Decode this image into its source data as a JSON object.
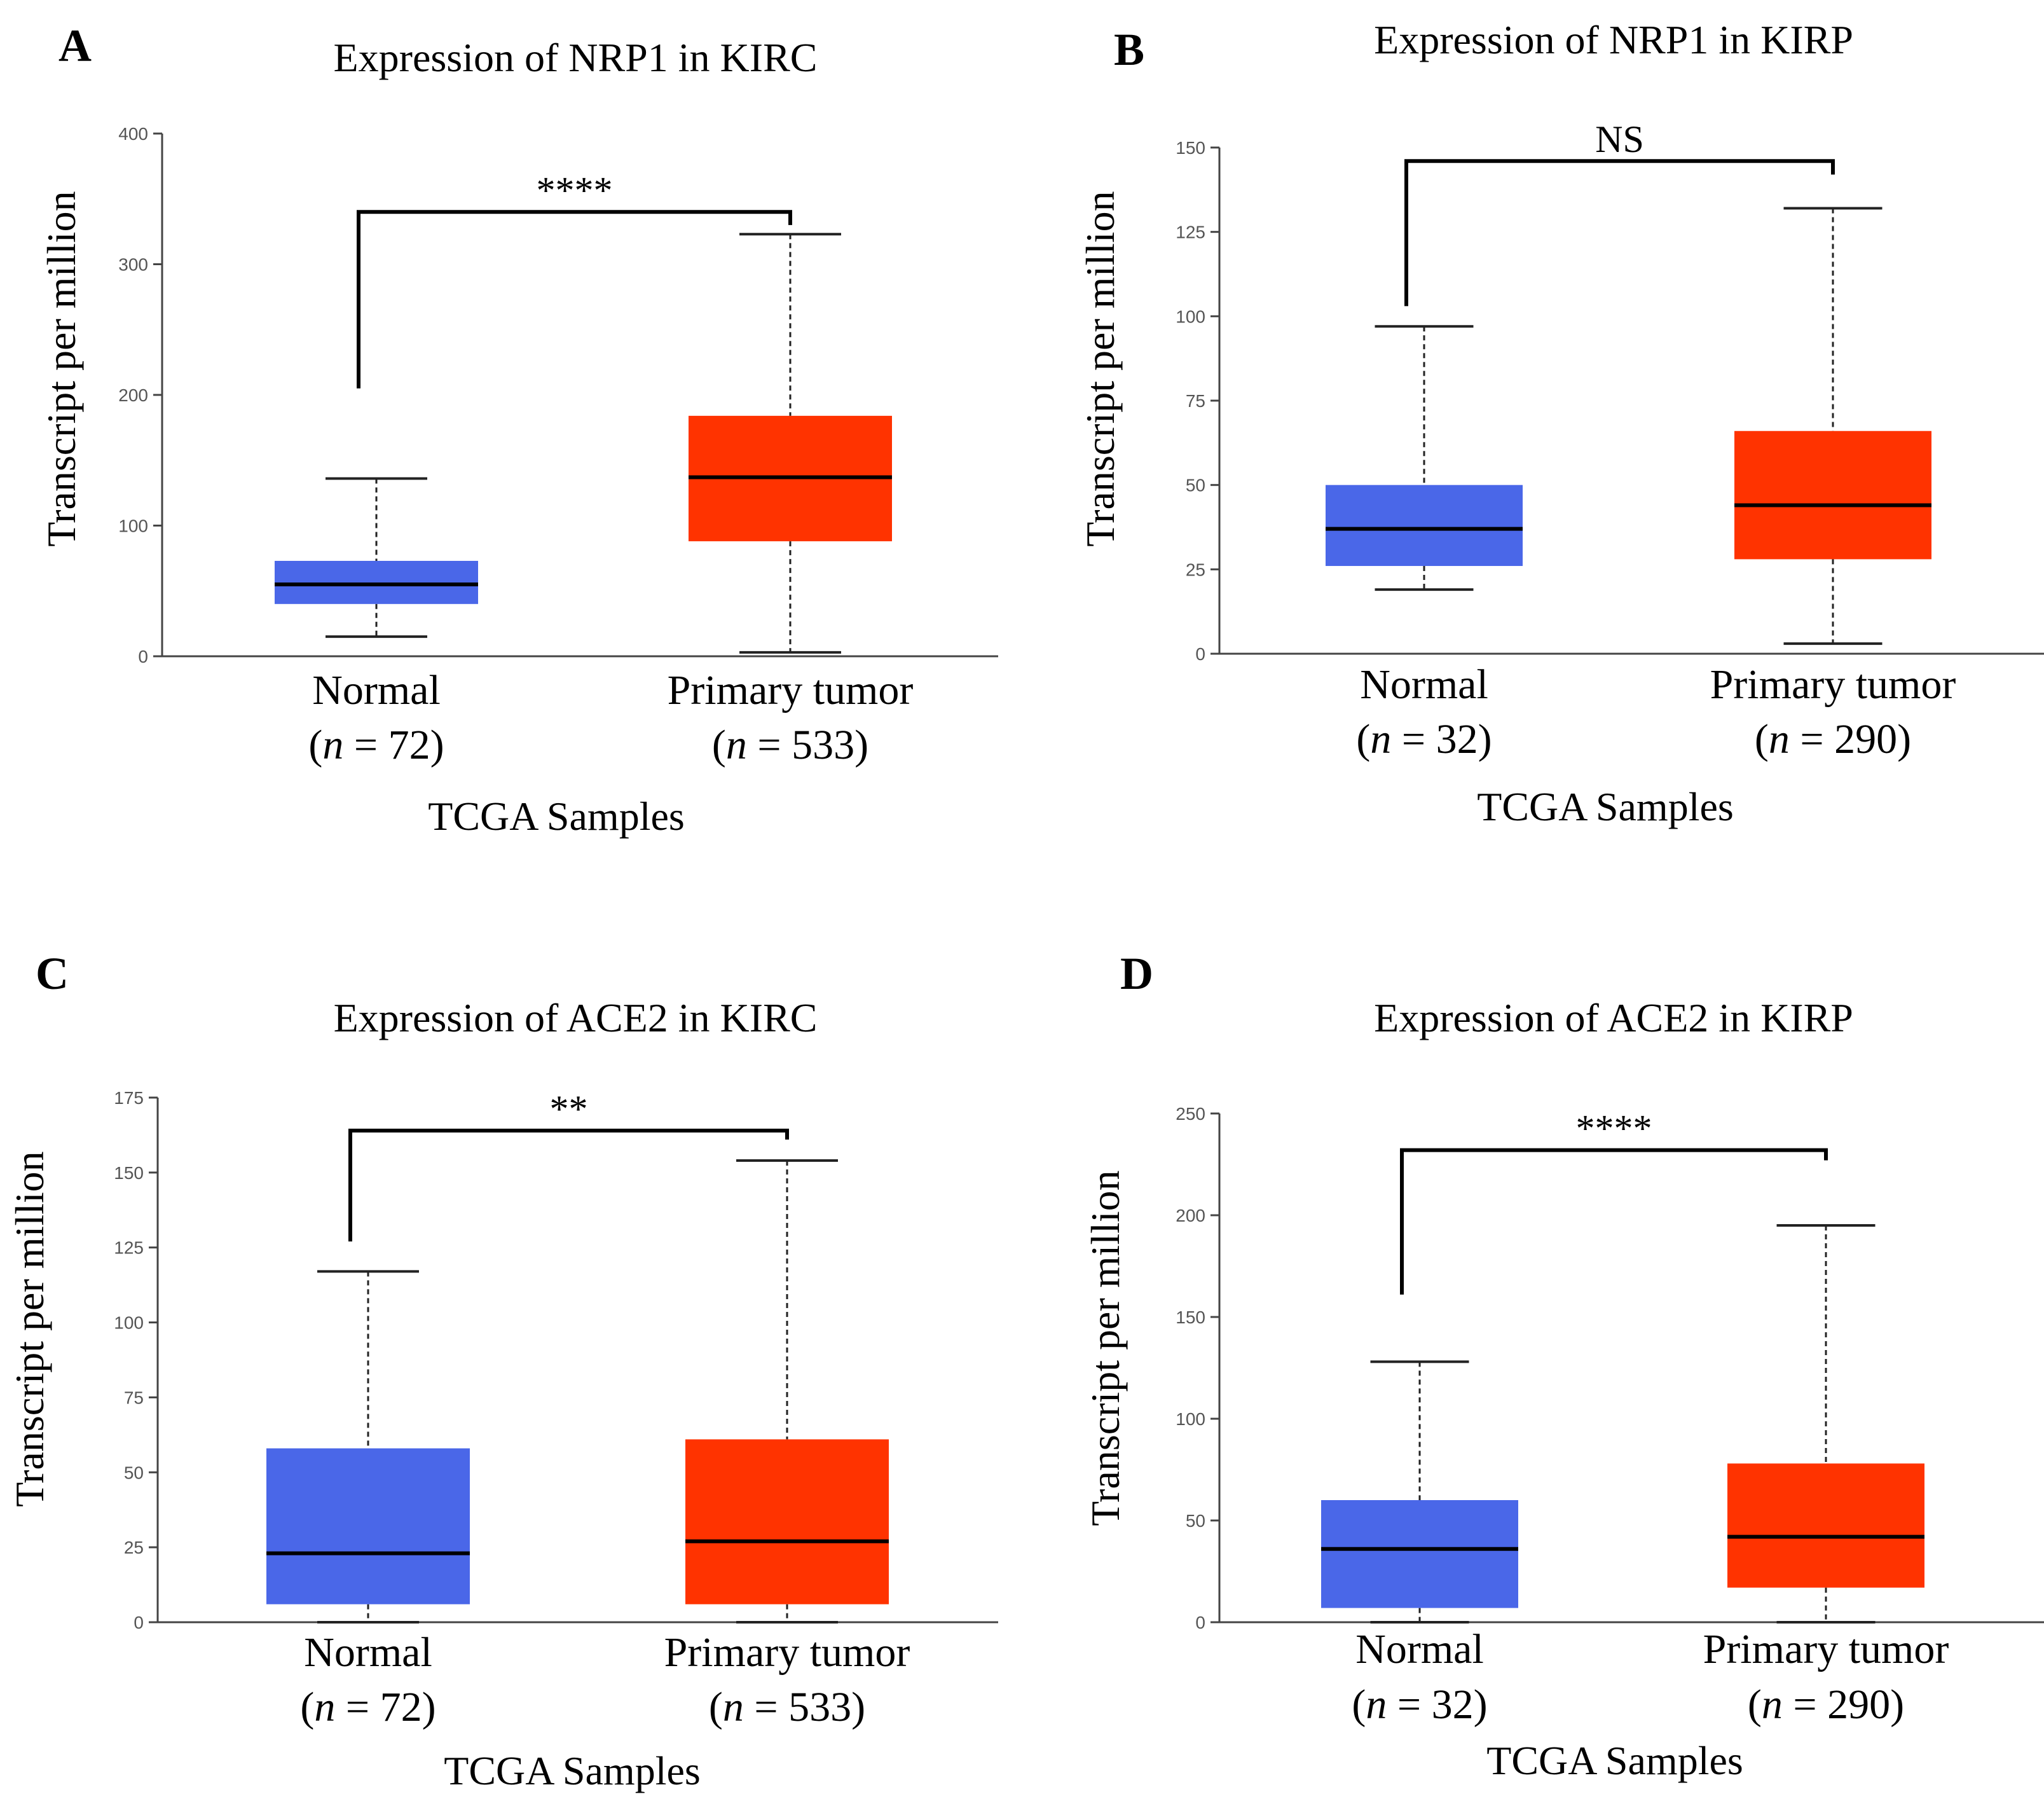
{
  "colors": {
    "normal": "#4a67e8",
    "tumor": "#ff3300"
  },
  "chart_data": [
    {
      "panel": "A",
      "type": "box",
      "title": "Expression of NRP1 in KIRC",
      "ylabel": "Transcript per million",
      "xlabel": "TCGA Samples",
      "ylim": [
        0,
        400
      ],
      "yticks": [
        "0",
        "100",
        "200",
        "300",
        "400"
      ],
      "categories": [
        "Normal",
        "Primary tumor"
      ],
      "sample_sizes": [
        "(n = 72)",
        "(n = 533)"
      ],
      "boxes": [
        {
          "name": "Normal",
          "min": 15,
          "q1": 40,
          "median": 55,
          "q3": 73,
          "max": 136
        },
        {
          "name": "Primary tumor",
          "min": 3,
          "q1": 88,
          "median": 137,
          "q3": 184,
          "max": 323
        }
      ],
      "significance": "****",
      "bracket_y": 340,
      "bracket_left_drop": 205,
      "bracket_right_drop": 330
    },
    {
      "panel": "B",
      "type": "box",
      "title": "Expression of NRP1 in KIRP",
      "ylabel": "Transcript per million",
      "xlabel": "TCGA Samples",
      "ylim": [
        0,
        150
      ],
      "yticks": [
        "0",
        "25",
        "50",
        "75",
        "100",
        "125",
        "150"
      ],
      "categories": [
        "Normal",
        "Primary tumor"
      ],
      "sample_sizes": [
        "(n = 32)",
        "(n = 290)"
      ],
      "boxes": [
        {
          "name": "Normal",
          "min": 19,
          "q1": 26,
          "median": 37,
          "q3": 50,
          "max": 97
        },
        {
          "name": "Primary tumor",
          "min": 3,
          "q1": 28,
          "median": 44,
          "q3": 66,
          "max": 132
        }
      ],
      "significance": "NS",
      "bracket_y": 146,
      "bracket_left_drop": 103,
      "bracket_right_drop": 142
    },
    {
      "panel": "C",
      "type": "box",
      "title": "Expression of ACE2 in KIRC",
      "ylabel": "Transcript per million",
      "xlabel": "TCGA Samples",
      "ylim": [
        0,
        175
      ],
      "yticks": [
        "0",
        "25",
        "50",
        "75",
        "100",
        "125",
        "150",
        "175"
      ],
      "categories": [
        "Normal",
        "Primary tumor"
      ],
      "sample_sizes": [
        "(n = 72)",
        "(n = 533)"
      ],
      "boxes": [
        {
          "name": "Normal",
          "min": 0,
          "q1": 6,
          "median": 23,
          "q3": 58,
          "max": 117
        },
        {
          "name": "Primary tumor",
          "min": 0,
          "q1": 6,
          "median": 27,
          "q3": 61,
          "max": 154
        }
      ],
      "significance": "**",
      "bracket_y": 164,
      "bracket_left_drop": 127,
      "bracket_right_drop": 161
    },
    {
      "panel": "D",
      "type": "box",
      "title": "Expression of ACE2 in KIRP",
      "ylabel": "Transcript per million",
      "xlabel": "TCGA Samples",
      "ylim": [
        0,
        250
      ],
      "yticks": [
        "0",
        "50",
        "100",
        "150",
        "200",
        "250"
      ],
      "categories": [
        "Normal",
        "Primary tumor"
      ],
      "sample_sizes": [
        "(n = 32)",
        "(n = 290)"
      ],
      "boxes": [
        {
          "name": "Normal",
          "min": 0,
          "q1": 7,
          "median": 36,
          "q3": 60,
          "max": 128
        },
        {
          "name": "Primary tumor",
          "min": 0,
          "q1": 17,
          "median": 42,
          "q3": 78,
          "max": 195
        }
      ],
      "significance": "****",
      "bracket_y": 232,
      "bracket_left_drop": 161,
      "bracket_right_drop": 227
    }
  ]
}
